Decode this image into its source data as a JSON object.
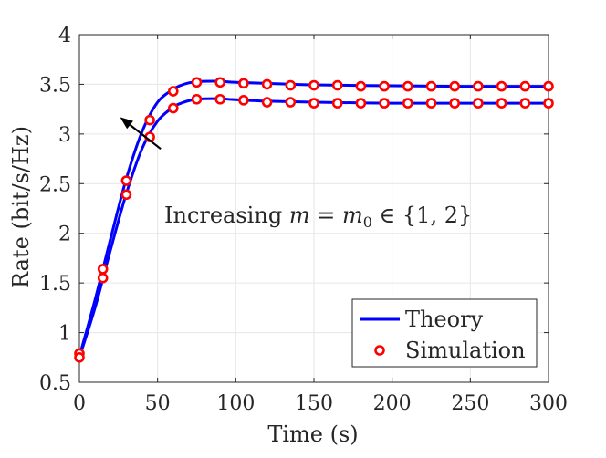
{
  "chart_data": {
    "type": "line",
    "title": "",
    "xlabel": "Time (s)",
    "ylabel": "Rate (bit/s/Hz)",
    "xlim": [
      0,
      300
    ],
    "ylim": [
      0.5,
      4
    ],
    "xticks": [
      0,
      50,
      100,
      150,
      200,
      250,
      300
    ],
    "yticks": [
      0.5,
      1,
      1.5,
      2,
      2.5,
      3,
      3.5,
      4
    ],
    "xtick_labels": [
      "0",
      "50",
      "100",
      "150",
      "200",
      "250",
      "300"
    ],
    "ytick_labels": [
      "0.5",
      "1",
      "1.5",
      "2",
      "2.5",
      "3",
      "3.5",
      "4"
    ],
    "grid": true,
    "legend_position": "bottom-right",
    "legend": [
      {
        "label": "Theory",
        "style": "line",
        "color": "#0000ff"
      },
      {
        "label": "Simulation",
        "style": "marker",
        "color": "#ff0000"
      }
    ],
    "annotation": {
      "text_prefix": "Increasing ",
      "text_math": "m = m",
      "text_sub": "0",
      "text_suffix": " ∈ {1, 2}",
      "arrow_from": [
        52,
        2.85
      ],
      "arrow_to": [
        26,
        3.17
      ]
    },
    "series": [
      {
        "name": "m = m0 = 2",
        "theory": {
          "x": [
            0,
            10,
            20,
            30,
            40,
            50,
            60,
            65,
            70,
            75,
            80,
            90,
            100,
            120,
            150,
            200,
            250,
            300
          ],
          "y": [
            0.76,
            1.33,
            1.95,
            2.55,
            3.02,
            3.32,
            3.45,
            3.49,
            3.515,
            3.525,
            3.53,
            3.53,
            3.52,
            3.51,
            3.495,
            3.485,
            3.48,
            3.48
          ]
        },
        "simulation": {
          "x": [
            0,
            15,
            30,
            45,
            60,
            75,
            90,
            105,
            120,
            135,
            150,
            165,
            180,
            195,
            210,
            225,
            240,
            255,
            270,
            285,
            300
          ],
          "y": [
            0.79,
            1.64,
            2.53,
            3.14,
            3.43,
            3.52,
            3.52,
            3.51,
            3.5,
            3.49,
            3.49,
            3.49,
            3.48,
            3.48,
            3.48,
            3.48,
            3.48,
            3.48,
            3.48,
            3.48,
            3.48
          ]
        }
      },
      {
        "name": "m = m0 = 1",
        "theory": {
          "x": [
            0,
            10,
            20,
            30,
            40,
            50,
            60,
            65,
            70,
            75,
            80,
            90,
            100,
            120,
            150,
            200,
            250,
            300
          ],
          "y": [
            0.75,
            1.25,
            1.84,
            2.4,
            2.85,
            3.13,
            3.27,
            3.31,
            3.335,
            3.35,
            3.355,
            3.355,
            3.345,
            3.33,
            3.32,
            3.31,
            3.31,
            3.31
          ]
        },
        "simulation": {
          "x": [
            0,
            15,
            30,
            45,
            60,
            75,
            90,
            105,
            120,
            135,
            150,
            165,
            180,
            195,
            210,
            225,
            240,
            255,
            270,
            285,
            300
          ],
          "y": [
            0.75,
            1.55,
            2.39,
            2.97,
            3.26,
            3.35,
            3.35,
            3.34,
            3.32,
            3.32,
            3.31,
            3.31,
            3.31,
            3.31,
            3.31,
            3.31,
            3.31,
            3.31,
            3.31,
            3.31,
            3.31
          ]
        }
      }
    ]
  }
}
